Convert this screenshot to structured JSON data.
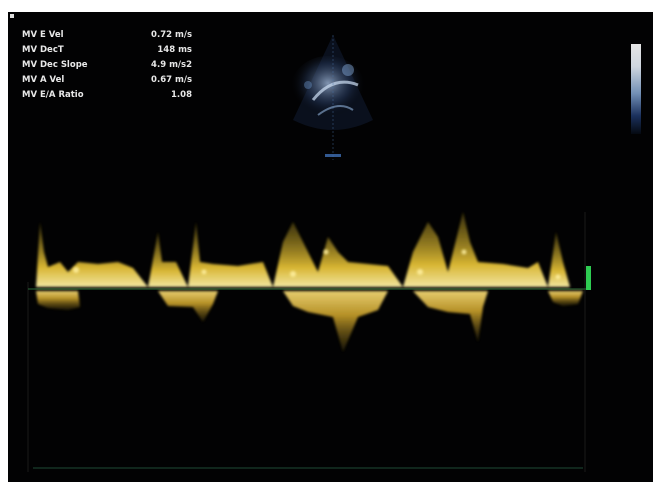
{
  "measurements": [
    {
      "label": "MV E Vel",
      "value": "0.72 m/s"
    },
    {
      "label": "MV DecT",
      "value": "148 ms"
    },
    {
      "label": "MV Dec Slope",
      "value": "4.9 m/s2"
    },
    {
      "label": "MV A Vel",
      "value": "0.67 m/s"
    },
    {
      "label": "MV E/A Ratio",
      "value": "1.08"
    }
  ],
  "colors": {
    "background": "#020203",
    "spectral_trace": "#e6c23a",
    "baseline": "#2a6b3a",
    "baseline_marker": "#2ecc52"
  }
}
